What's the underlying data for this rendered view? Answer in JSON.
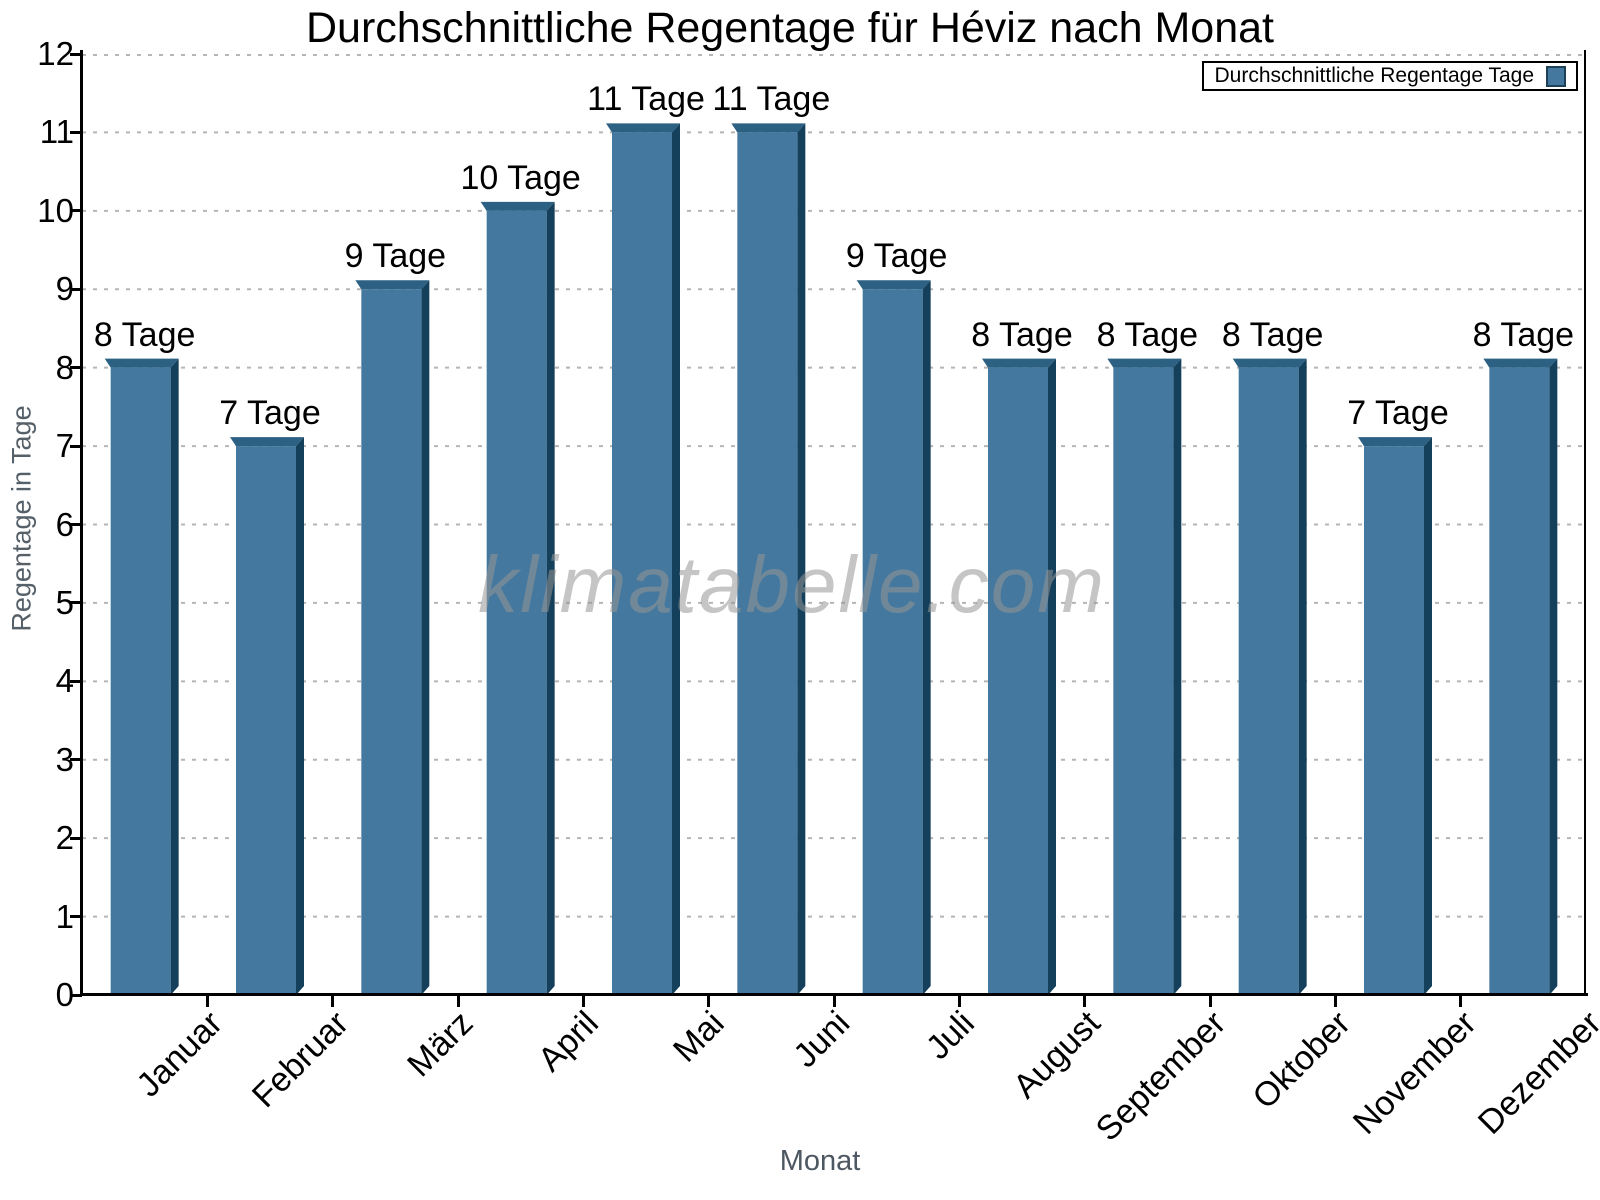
{
  "title": "Durchschnittliche Regentage für Héviz nach Monat",
  "legend": {
    "label": "Durchschnittliche Regentage Tage"
  },
  "watermark": "klimatabelle.com",
  "chart_data": {
    "type": "bar",
    "title": "Durchschnittliche Regentage für Héviz nach Monat",
    "categories": [
      "Januar",
      "Februar",
      "März",
      "April",
      "Mai",
      "Juni",
      "Juli",
      "August",
      "September",
      "Oktober",
      "November",
      "Dezember"
    ],
    "values": [
      8,
      7,
      9,
      10,
      11,
      11,
      9,
      8,
      8,
      8,
      7,
      8
    ],
    "value_label_unit": "Tage",
    "value_labels": [
      "8 Tage",
      "7 Tage",
      "9 Tage",
      "10 Tage",
      "11 Tage",
      "11 Tage",
      "9 Tage",
      "8 Tage",
      "8 Tage",
      "8 Tage",
      "7 Tage",
      "8 Tage"
    ],
    "xlabel": "Monat",
    "ylabel": "Regentage in Tage",
    "ylim": [
      0,
      12
    ],
    "ytick_step": 1,
    "grid": "horizontal-dashed",
    "legend_position": "top-right",
    "bar_face_color": "#44789E",
    "bar_side_color": "#14405C",
    "bar_top_color": "#2D6183",
    "gridline_color": "#b5b5b5",
    "axis_color": "#000000"
  }
}
